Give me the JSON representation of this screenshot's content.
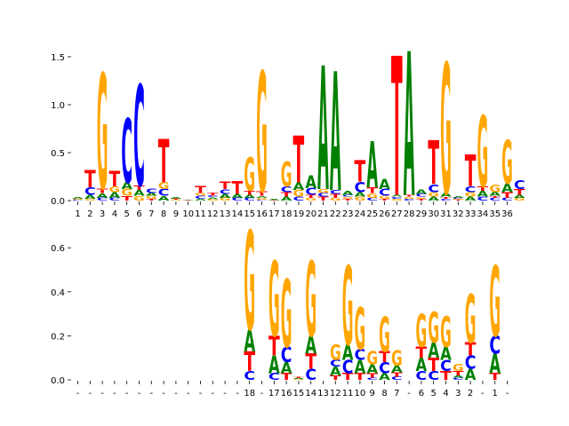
{
  "colors": {
    "A": "#008000",
    "C": "#0000ff",
    "G": "#ffa500",
    "T": "#ff0000"
  },
  "chart_data": [
    {
      "type": "sequence-logo",
      "title": "",
      "xlabel": "",
      "ylabel": "",
      "ylim": [
        0,
        1.6
      ],
      "yticks": [
        "0.0",
        "0.5",
        "1.0",
        "1.5"
      ],
      "ytick_values": [
        0,
        0.5,
        1.0,
        1.5
      ],
      "xtick_labels": [
        "1",
        "2",
        "3",
        "4",
        "5",
        "6",
        "7",
        "8",
        "9",
        "10",
        "11",
        "12",
        "13",
        "14",
        "15",
        "16",
        "17",
        "18",
        "19",
        "20",
        "21",
        "22",
        "23",
        "24",
        "25",
        "26",
        "27",
        "28",
        "29",
        "30",
        "31",
        "32",
        "33",
        "34",
        "35",
        "36"
      ],
      "columns": [
        [
          [
            "C",
            0.01
          ],
          [
            "G",
            0.01
          ],
          [
            "A",
            0.015
          ]
        ],
        [
          [
            "G",
            0.02
          ],
          [
            "A",
            0.04
          ],
          [
            "C",
            0.08
          ],
          [
            "T",
            0.18
          ]
        ],
        [
          [
            "C",
            0.03
          ],
          [
            "A",
            0.05
          ],
          [
            "T",
            0.05
          ],
          [
            "G",
            1.2
          ]
        ],
        [
          [
            "C",
            0.03
          ],
          [
            "A",
            0.06
          ],
          [
            "G",
            0.06
          ],
          [
            "T",
            0.16
          ]
        ],
        [
          [
            "T",
            0.05
          ],
          [
            "G",
            0.07
          ],
          [
            "A",
            0.07
          ],
          [
            "C",
            0.67
          ]
        ],
        [
          [
            "G",
            0.05
          ],
          [
            "A",
            0.06
          ],
          [
            "T",
            0.05
          ],
          [
            "C",
            1.05
          ]
        ],
        [
          [
            "T",
            0.02
          ],
          [
            "G",
            0.03
          ],
          [
            "A",
            0.03
          ],
          [
            "C",
            0.05
          ]
        ],
        [
          [
            "A",
            0.05
          ],
          [
            "C",
            0.07
          ],
          [
            "G",
            0.07
          ],
          [
            "T",
            0.45
          ]
        ],
        [
          [
            "G",
            0.01
          ],
          [
            "T",
            0.01
          ],
          [
            "A",
            0.015
          ]
        ],
        [
          [
            "T",
            0.005
          ],
          [
            "A",
            0.005
          ]
        ],
        [
          [
            "A",
            0.02
          ],
          [
            "C",
            0.03
          ],
          [
            "G",
            0.03
          ],
          [
            "T",
            0.07
          ]
        ],
        [
          [
            "G",
            0.015
          ],
          [
            "A",
            0.02
          ],
          [
            "C",
            0.015
          ],
          [
            "T",
            0.03
          ]
        ],
        [
          [
            "G",
            0.03
          ],
          [
            "A",
            0.04
          ],
          [
            "C",
            0.05
          ],
          [
            "T",
            0.08
          ]
        ],
        [
          [
            "C",
            0.03
          ],
          [
            "A",
            0.04
          ],
          [
            "T",
            0.13
          ]
        ],
        [
          [
            "C",
            0.03
          ],
          [
            "A",
            0.03
          ],
          [
            "T",
            0.04
          ],
          [
            "G",
            0.35
          ]
        ],
        [
          [
            "C",
            0.01
          ],
          [
            "G",
            0.02
          ],
          [
            "A",
            0.02
          ],
          [
            "T",
            0.05
          ],
          [
            "G",
            1.25
          ]
        ],
        [
          [
            "T",
            0.005
          ],
          [
            "A",
            0.01
          ]
        ],
        [
          [
            "A",
            0.04
          ],
          [
            "T",
            0.05
          ],
          [
            "C",
            0.06
          ],
          [
            "G",
            0.26
          ]
        ],
        [
          [
            "C",
            0.04
          ],
          [
            "G",
            0.07
          ],
          [
            "A",
            0.08
          ],
          [
            "T",
            0.49
          ]
        ],
        [
          [
            "G",
            0.03
          ],
          [
            "T",
            0.03
          ],
          [
            "C",
            0.07
          ],
          [
            "A",
            0.13
          ]
        ],
        [
          [
            "T",
            0.04
          ],
          [
            "C",
            0.04
          ],
          [
            "G",
            0.04
          ],
          [
            "A",
            1.29
          ]
        ],
        [
          [
            "G",
            0.03
          ],
          [
            "T",
            0.04
          ],
          [
            "C",
            0.04
          ],
          [
            "A",
            1.24
          ]
        ],
        [
          [
            "T",
            0.02
          ],
          [
            "G",
            0.02
          ],
          [
            "C",
            0.02
          ],
          [
            "A",
            0.04
          ]
        ],
        [
          [
            "G",
            0.04
          ],
          [
            "A",
            0.05
          ],
          [
            "C",
            0.11
          ],
          [
            "T",
            0.22
          ]
        ],
        [
          [
            "C",
            0.03
          ],
          [
            "G",
            0.05
          ],
          [
            "T",
            0.06
          ],
          [
            "A",
            0.48
          ]
        ],
        [
          [
            "T",
            0.02
          ],
          [
            "G",
            0.03
          ],
          [
            "C",
            0.07
          ],
          [
            "A",
            0.11
          ]
        ],
        [
          [
            "G",
            0.02
          ],
          [
            "C",
            0.02
          ],
          [
            "A",
            0.02
          ],
          [
            "T",
            1.45
          ]
        ],
        [
          [
            "C",
            0.02
          ],
          [
            "G",
            0.02
          ],
          [
            "T",
            0.02
          ],
          [
            "A",
            1.5
          ]
        ],
        [
          [
            "T",
            0.02
          ],
          [
            "G",
            0.02
          ],
          [
            "C",
            0.03
          ],
          [
            "A",
            0.05
          ]
        ],
        [
          [
            "A",
            0.04
          ],
          [
            "G",
            0.05
          ],
          [
            "C",
            0.08
          ],
          [
            "T",
            0.46
          ]
        ],
        [
          [
            "C",
            0.02
          ],
          [
            "T",
            0.02
          ],
          [
            "A",
            0.04
          ],
          [
            "G",
            1.36
          ]
        ],
        [
          [
            "T",
            0.01
          ],
          [
            "G",
            0.01
          ],
          [
            "C",
            0.01
          ],
          [
            "A",
            0.02
          ]
        ],
        [
          [
            "A",
            0.04
          ],
          [
            "G",
            0.05
          ],
          [
            "C",
            0.06
          ],
          [
            "T",
            0.33
          ]
        ],
        [
          [
            "C",
            0.04
          ],
          [
            "A",
            0.06
          ],
          [
            "T",
            0.05
          ],
          [
            "G",
            0.74
          ]
        ],
        [
          [
            "C",
            0.03
          ],
          [
            "T",
            0.02
          ],
          [
            "A",
            0.04
          ],
          [
            "G",
            0.08
          ]
        ],
        [
          [
            "C",
            0.03
          ],
          [
            "T",
            0.06
          ],
          [
            "A",
            0.09
          ],
          [
            "G",
            0.45
          ]
        ],
        [
          [
            "G",
            0.03
          ],
          [
            "A",
            0.03
          ],
          [
            "T",
            0.06
          ],
          [
            "C",
            0.09
          ]
        ]
      ]
    },
    {
      "type": "sequence-logo",
      "title": "",
      "xlabel": "",
      "ylabel": "",
      "ylim": [
        0,
        0.7
      ],
      "yticks": [
        "0.0",
        "0.2",
        "0.4",
        "0.6"
      ],
      "ytick_values": [
        0,
        0.2,
        0.4,
        0.6
      ],
      "xtick_labels": [
        "-",
        "-",
        "-",
        "-",
        "-",
        "-",
        "-",
        "-",
        "-",
        "-",
        "-",
        "-",
        "-",
        "-",
        "18",
        "-",
        "17",
        "16",
        "15",
        "14",
        "13",
        "12",
        "11",
        "10",
        "9",
        "8",
        "7",
        "-",
        "6",
        "5",
        "4",
        "3",
        "2",
        "-",
        "1",
        "-"
      ],
      "columns": [
        [],
        [],
        [],
        [],
        [],
        [],
        [],
        [],
        [],
        [],
        [],
        [],
        [],
        [],
        [
          [
            "C",
            0.04
          ],
          [
            "T",
            0.09
          ],
          [
            "A",
            0.1
          ],
          [
            "G",
            0.45
          ]
        ],
        [],
        [
          [
            "C",
            0.03
          ],
          [
            "A",
            0.08
          ],
          [
            "T",
            0.09
          ],
          [
            "G",
            0.34
          ]
        ],
        [
          [
            "T",
            0.03
          ],
          [
            "A",
            0.05
          ],
          [
            "C",
            0.07
          ],
          [
            "G",
            0.31
          ]
        ],
        [
          [
            "G",
            0.005
          ],
          [
            "A",
            0.004
          ],
          [
            "T",
            0.004
          ]
        ],
        [
          [
            "C",
            0.05
          ],
          [
            "T",
            0.07
          ],
          [
            "A",
            0.08
          ],
          [
            "G",
            0.34
          ]
        ],
        [],
        [
          [
            "T",
            0.02
          ],
          [
            "A",
            0.04
          ],
          [
            "C",
            0.03
          ],
          [
            "G",
            0.07
          ]
        ],
        [
          [
            "T",
            0.03
          ],
          [
            "C",
            0.06
          ],
          [
            "A",
            0.07
          ],
          [
            "G",
            0.36
          ]
        ],
        [
          [
            "T",
            0.03
          ],
          [
            "A",
            0.06
          ],
          [
            "C",
            0.05
          ],
          [
            "G",
            0.19
          ]
        ],
        [
          [
            "C",
            0.01
          ],
          [
            "T",
            0.02
          ],
          [
            "A",
            0.04
          ],
          [
            "G",
            0.06
          ]
        ],
        [
          [
            "A",
            0.03
          ],
          [
            "C",
            0.05
          ],
          [
            "T",
            0.05
          ],
          [
            "G",
            0.16
          ]
        ],
        [
          [
            "C",
            0.015
          ],
          [
            "T",
            0.02
          ],
          [
            "A",
            0.03
          ],
          [
            "G",
            0.07
          ]
        ],
        [],
        [
          [
            "C",
            0.04
          ],
          [
            "A",
            0.06
          ],
          [
            "T",
            0.05
          ],
          [
            "G",
            0.15
          ]
        ],
        [
          [
            "C",
            0.04
          ],
          [
            "T",
            0.06
          ],
          [
            "A",
            0.07
          ],
          [
            "G",
            0.14
          ]
        ],
        [
          [
            "T",
            0.04
          ],
          [
            "C",
            0.05
          ],
          [
            "A",
            0.06
          ],
          [
            "G",
            0.14
          ]
        ],
        [
          [
            "C",
            0.01
          ],
          [
            "A",
            0.01
          ],
          [
            "T",
            0.02
          ],
          [
            "G",
            0.03
          ]
        ],
        [
          [
            "A",
            0.05
          ],
          [
            "C",
            0.06
          ],
          [
            "T",
            0.06
          ],
          [
            "G",
            0.22
          ]
        ],
        [],
        [
          [
            "T",
            0.03
          ],
          [
            "A",
            0.09
          ],
          [
            "C",
            0.08
          ],
          [
            "G",
            0.32
          ]
        ],
        []
      ]
    }
  ]
}
